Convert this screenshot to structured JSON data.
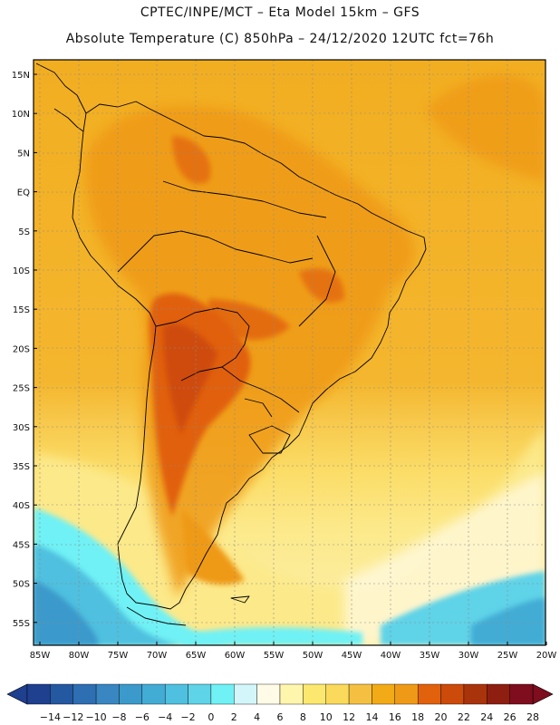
{
  "header": {
    "line1": "CPTEC/INPE/MCT –  Eta Model 15km – GFS",
    "line2": "Absolute Temperature (C) 850hPa – 24/12/2020 12UTC fct=76h"
  },
  "axes": {
    "lat_labels": [
      "15N",
      "10N",
      "5N",
      "EQ",
      "5S",
      "10S",
      "15S",
      "20S",
      "25S",
      "30S",
      "35S",
      "40S",
      "45S",
      "50S",
      "55S"
    ],
    "lon_labels": [
      "85W",
      "80W",
      "75W",
      "70W",
      "65W",
      "60W",
      "55W",
      "50W",
      "45W",
      "40W",
      "35W",
      "30W",
      "25W",
      "20W"
    ]
  },
  "colorbar": {
    "labels": [
      "-14",
      "-12",
      "-10",
      "-8",
      "-6",
      "-4",
      "-2",
      "0",
      "2",
      "4",
      "6",
      "8",
      "10",
      "12",
      "14",
      "16",
      "18",
      "20",
      "22",
      "24",
      "26",
      "28"
    ],
    "colors": [
      "#1f3f8f",
      "#2458a0",
      "#2d6fb2",
      "#3a86c3",
      "#3b9acb",
      "#43acd4",
      "#4fc0df",
      "#5fd3e8",
      "#6ff1f5",
      "#d3f6fb",
      "#fffbe7",
      "#fff6ad",
      "#fde86f",
      "#fbd95a",
      "#f5c042",
      "#f2aa17",
      "#ef9a17",
      "#e1610d",
      "#cc4a0a",
      "#a9330a",
      "#8e1e10",
      "#7e0d1d"
    ]
  }
}
